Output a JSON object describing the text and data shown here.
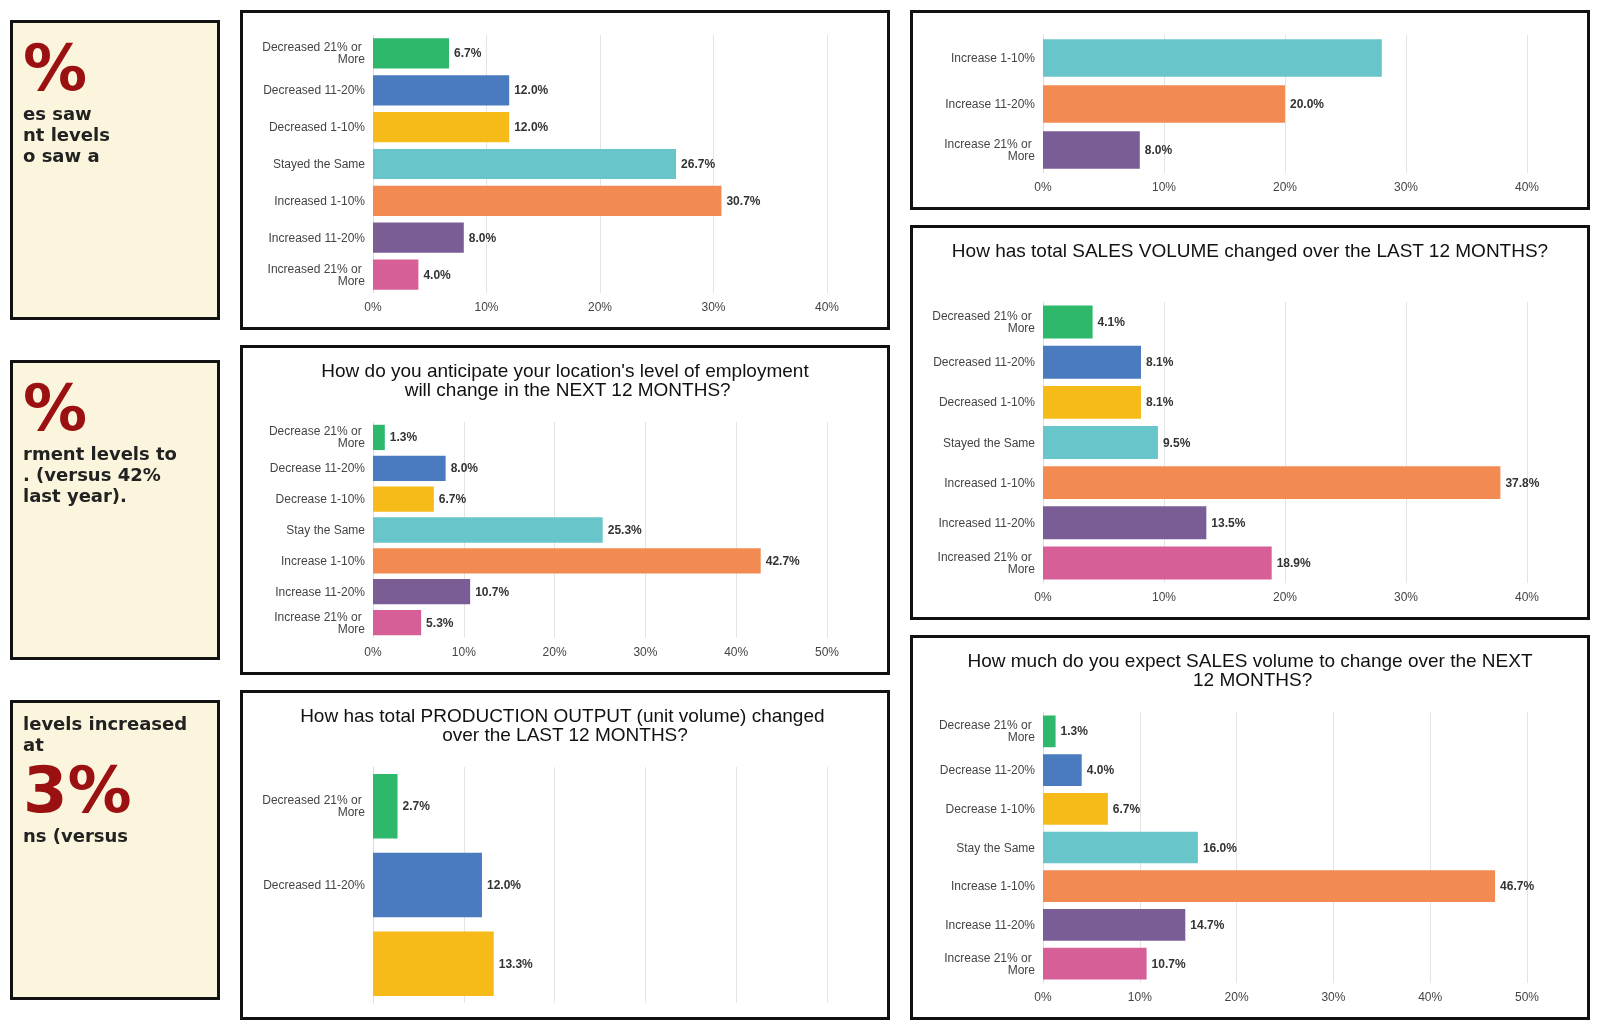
{
  "chart_data": [
    {
      "type": "other",
      "annotations": [
        "%",
        "es saw",
        "nt levels",
        "o saw a"
      ]
    },
    {
      "type": "other",
      "annotations": [
        "%",
        "rment levels to",
        ". (versus 42%",
        "last year)."
      ]
    },
    {
      "type": "other",
      "annotations": [
        "levels increased at",
        "3%",
        "ns (versus"
      ]
    },
    {
      "type": "bar",
      "orientation": "horizontal",
      "categories": [
        "Decreased 21% or More",
        "Decreased 11-20%",
        "Decreased 1-10%",
        "Stayed the Same",
        "Increased 1-10%",
        "Increased 11-20%",
        "Increased 21% or More"
      ],
      "values": [
        6.7,
        12.0,
        12.0,
        26.7,
        30.7,
        8.0,
        4.0
      ],
      "value_labels": [
        "6.7%",
        "12.0%",
        "12.0%",
        "26.7%",
        "30.7%",
        "8.0%",
        "4.0%"
      ],
      "colors": [
        "#2db86c",
        "#4b7bbf",
        "#f6bb18",
        "#68c6ca",
        "#f28a52",
        "#7b5d96",
        "#d75f98"
      ],
      "xlim": [
        0,
        40
      ],
      "xticks": [
        {
          "value": 0,
          "label": "0%"
        },
        {
          "value": 10,
          "label": "10%"
        },
        {
          "value": 20,
          "label": "20%"
        },
        {
          "value": 30,
          "label": "30%"
        },
        {
          "value": 40,
          "label": "40%"
        }
      ],
      "grid": "x"
    },
    {
      "type": "bar",
      "orientation": "horizontal",
      "title": "How do you anticipate your location's level of employment will change in the NEXT 12 MONTHS?",
      "categories": [
        "Decrease 21% or More",
        "Decrease 11-20%",
        "Decrease 1-10%",
        "Stay the Same",
        "Increase 1-10%",
        "Increase 11-20%",
        "Increase 21% or More"
      ],
      "values": [
        1.3,
        8.0,
        6.7,
        25.3,
        42.7,
        10.7,
        5.3
      ],
      "value_labels": [
        "1.3%",
        "8.0%",
        "6.7%",
        "25.3%",
        "42.7%",
        "10.7%",
        "5.3%"
      ],
      "colors": [
        "#2db86c",
        "#4b7bbf",
        "#f6bb18",
        "#68c6ca",
        "#f28a52",
        "#7b5d96",
        "#d75f98"
      ],
      "xlim": [
        0,
        50
      ],
      "xticks": [
        {
          "value": 0,
          "label": "0%"
        },
        {
          "value": 10,
          "label": "10%"
        },
        {
          "value": 20,
          "label": "20%"
        },
        {
          "value": 30,
          "label": "30%"
        },
        {
          "value": 40,
          "label": "40%"
        },
        {
          "value": 50,
          "label": "50%"
        }
      ],
      "grid": "x"
    },
    {
      "type": "bar",
      "orientation": "horizontal",
      "title": "How has total PRODUCTION OUTPUT (unit volume) changed over the LAST 12 MONTHS?",
      "categories": [
        "Decreased 21% or More",
        "Decreased 11-20%",
        null
      ],
      "values": [
        2.7,
        12.0,
        13.3
      ],
      "value_labels": [
        "2.7%",
        "12.0%",
        "13.3%"
      ],
      "colors": [
        "#2db86c",
        "#4b7bbf",
        "#f6bb18"
      ],
      "xlim": [
        0,
        50
      ],
      "xticks": [
        {
          "value": 0,
          "label": null
        },
        {
          "value": 10,
          "label": null
        },
        {
          "value": 20,
          "label": null
        },
        {
          "value": 30,
          "label": null
        },
        {
          "value": 40,
          "label": null
        },
        {
          "value": 50,
          "label": null
        }
      ],
      "tick_labels": "y",
      "grid": "x"
    },
    {
      "type": "bar",
      "orientation": "horizontal",
      "categories": [
        "Increase 1-10%",
        "Increase 11-20%",
        "Increase 21% or More"
      ],
      "values": [
        28,
        20.0,
        8.0
      ],
      "value_labels": [
        null,
        "20.0%",
        "8.0%"
      ],
      "colors": [
        "#68c6ca",
        "#f28a52",
        "#7b5d96"
      ],
      "xlim": [
        0,
        40
      ],
      "xticks": [
        {
          "value": 0,
          "label": "0%"
        },
        {
          "value": 10,
          "label": "10%"
        },
        {
          "value": 20,
          "label": "20%"
        },
        {
          "value": 30,
          "label": "30%"
        },
        {
          "value": 40,
          "label": "40%"
        }
      ],
      "grid": "x"
    },
    {
      "type": "bar",
      "orientation": "horizontal",
      "title": "How has total SALES VOLUME changed over the LAST 12 MONTHS?",
      "categories": [
        "Decreased 21% or More",
        "Decreased 11-20%",
        "Decreased 1-10%",
        "Stayed the Same",
        "Increased 1-10%",
        "Increased 11-20%",
        "Increased 21% or More"
      ],
      "values": [
        4.1,
        8.1,
        8.1,
        9.5,
        37.8,
        13.5,
        18.9
      ],
      "value_labels": [
        "4.1%",
        "8.1%",
        "8.1%",
        "9.5%",
        "37.8%",
        "13.5%",
        "18.9%"
      ],
      "colors": [
        "#2db86c",
        "#4b7bbf",
        "#f6bb18",
        "#68c6ca",
        "#f28a52",
        "#7b5d96",
        "#d75f98"
      ],
      "xlim": [
        0,
        40
      ],
      "xticks": [
        {
          "value": 0,
          "label": "0%"
        },
        {
          "value": 10,
          "label": "10%"
        },
        {
          "value": 20,
          "label": "20%"
        },
        {
          "value": 30,
          "label": "30%"
        },
        {
          "value": 40,
          "label": "40%"
        }
      ],
      "grid": "x"
    },
    {
      "type": "bar",
      "orientation": "horizontal",
      "title": "How much do you expect SALES volume to change over the NEXT 12 MONTHS?",
      "categories": [
        "Decrease 21% or More",
        "Decrease 11-20%",
        "Decrease 1-10%",
        "Stay the Same",
        "Increase 1-10%",
        "Increase 11-20%",
        "Increase 21% or More"
      ],
      "values": [
        1.3,
        4.0,
        6.7,
        16.0,
        46.7,
        14.7,
        10.7
      ],
      "value_labels": [
        "1.3%",
        "4.0%",
        "6.7%",
        "16.0%",
        "46.7%",
        "14.7%",
        "10.7%"
      ],
      "colors": [
        "#2db86c",
        "#4b7bbf",
        "#f6bb18",
        "#68c6ca",
        "#f28a52",
        "#7b5d96",
        "#d75f98"
      ],
      "xlim": [
        0,
        50
      ],
      "xticks": [
        {
          "value": 0,
          "label": "0%"
        },
        {
          "value": 10,
          "label": "10%"
        },
        {
          "value": 20,
          "label": "20%"
        },
        {
          "value": 30,
          "label": "30%"
        },
        {
          "value": 40,
          "label": "40%"
        },
        {
          "value": 50,
          "label": "50%"
        }
      ],
      "grid": "x"
    }
  ]
}
